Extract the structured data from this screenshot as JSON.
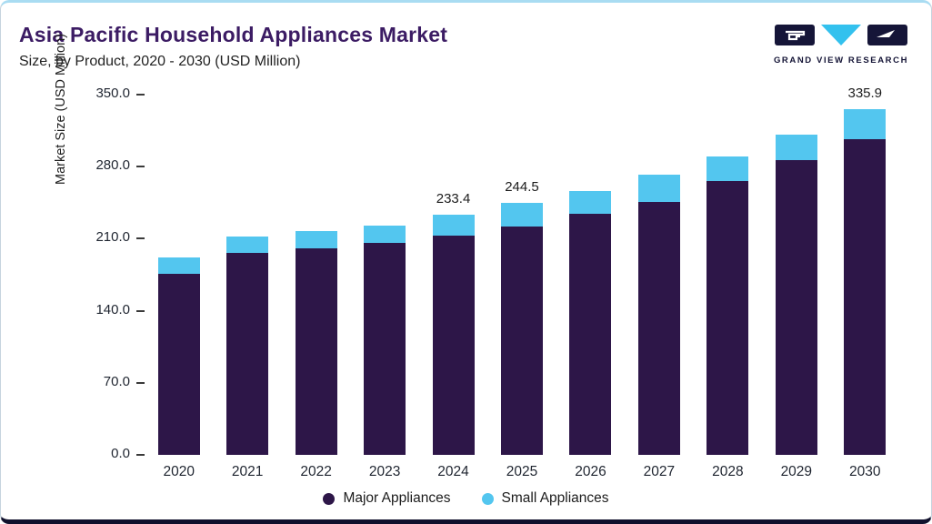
{
  "header": {
    "title": "Asia Pacific Household Appliances Market",
    "subtitle": "Size, by Product, 2020 - 2030 (USD Million)",
    "logo_text": "GRAND VIEW RESEARCH"
  },
  "colors": {
    "major": "#2d1648",
    "small": "#53c6ef",
    "title": "#3c1c64",
    "frame_top_accent": "#a9dcf2",
    "frame_bottom_accent": "#10102c"
  },
  "chart_data": {
    "type": "bar",
    "stacked": true,
    "title": "Asia Pacific Household Appliances Market Size, by Product, 2020 - 2030 (USD Million)",
    "xlabel": "",
    "ylabel": "Market Size (USD Million)",
    "ylim": [
      0,
      350
    ],
    "ytick_labels": [
      "0.0",
      "70.0",
      "140.0",
      "210.0",
      "280.0",
      "350.0"
    ],
    "grid": false,
    "legend_position": "bottom",
    "categories": [
      "2020",
      "2021",
      "2022",
      "2023",
      "2024",
      "2025",
      "2026",
      "2027",
      "2028",
      "2029",
      "2030"
    ],
    "series": [
      {
        "name": "Major Appliances",
        "color": "#2d1648",
        "values": [
          176.0,
          196.0,
          201.0,
          206.0,
          213.0,
          222.0,
          234.0,
          246.0,
          266.0,
          286.0,
          307.0
        ]
      },
      {
        "name": "Small Appliances",
        "color": "#53c6ef",
        "values": [
          16.0,
          16.0,
          16.0,
          17.0,
          20.4,
          22.5,
          22.0,
          26.0,
          24.0,
          25.0,
          28.9
        ]
      }
    ],
    "totals": [
      192.0,
      212.0,
      217.0,
      223.0,
      233.4,
      244.5,
      256.0,
      272.0,
      290.0,
      311.0,
      335.9
    ],
    "bar_labels": [
      null,
      null,
      null,
      null,
      "233.4",
      "244.5",
      null,
      null,
      null,
      null,
      "335.9"
    ]
  }
}
